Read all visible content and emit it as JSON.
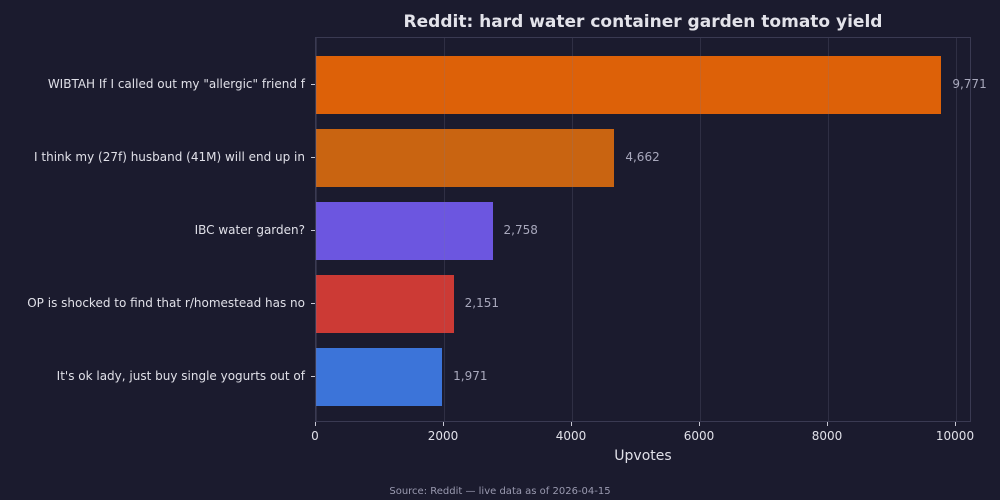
{
  "chart_data": {
    "type": "bar",
    "orientation": "horizontal",
    "title": "Reddit: hard water container garden tomato yield",
    "xlabel": "Upvotes",
    "ylabel": "",
    "xlim": [
      0,
      10250
    ],
    "xticks": [
      "0",
      "2000",
      "4000",
      "6000",
      "8000",
      "10000"
    ],
    "grid": true,
    "categories": [
      "WIBTAH If I called out my \"allergic\" friend f",
      "I think my (27f) husband (41M) will end up in",
      "IBC water garden?",
      "OP is shocked to find that r/homestead has no",
      "It's ok lady, just buy single yogurts out of "
    ],
    "values": [
      9771,
      4662,
      2758,
      2151,
      1971
    ],
    "value_labels": [
      "9,771",
      "4,662",
      "2,758",
      "2,151",
      "1,971"
    ],
    "colors": [
      "#dd6108",
      "#c96411",
      "#6c56e0",
      "#cc3a35",
      "#3c74d9"
    ]
  },
  "footer": {
    "source": "Source: Reddit — live data as of 2026-04-15"
  }
}
